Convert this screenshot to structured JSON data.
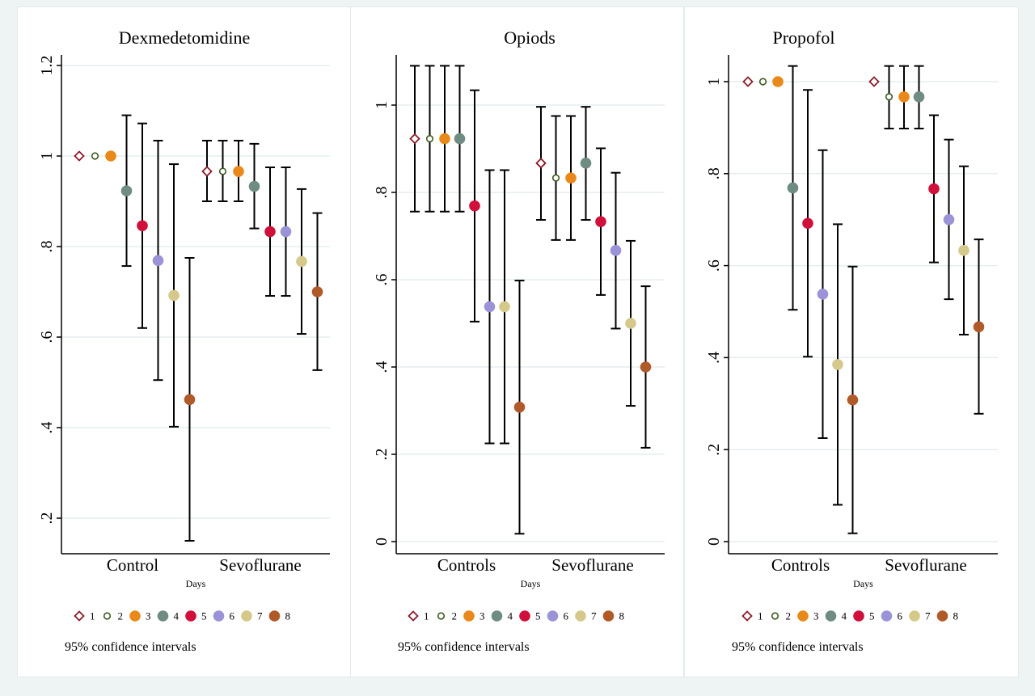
{
  "chart_data": [
    {
      "type": "scatter",
      "title": "Dexmedetomidine",
      "xlabel": "Days",
      "ylabel": "",
      "categories": [
        "Control",
        "Sevoflurane"
      ],
      "ylim": [
        0.12,
        1.22
      ],
      "yticks": [
        0.2,
        0.4,
        0.6,
        0.8,
        1,
        1.2
      ],
      "ytick_labels": [
        ".2",
        ".4",
        ".6",
        ".8",
        "1",
        "1.2"
      ],
      "grid": true,
      "legend_position": "bottom",
      "note": "95% confidence intervals",
      "series": [
        {
          "name": "1",
          "values": [
            1.0,
            0.966
          ],
          "ci_low": [
            null,
            0.9
          ],
          "ci_high": [
            null,
            1.034
          ]
        },
        {
          "name": "2",
          "values": [
            1.0,
            0.966
          ],
          "ci_low": [
            null,
            0.9
          ],
          "ci_high": [
            null,
            1.034
          ]
        },
        {
          "name": "3",
          "values": [
            1.0,
            0.966
          ],
          "ci_low": [
            null,
            0.9
          ],
          "ci_high": [
            null,
            1.034
          ]
        },
        {
          "name": "4",
          "values": [
            0.923,
            0.933
          ],
          "ci_low": [
            0.757,
            0.84
          ],
          "ci_high": [
            1.09,
            1.027
          ]
        },
        {
          "name": "5",
          "values": [
            0.846,
            0.833
          ],
          "ci_low": [
            0.62,
            0.691
          ],
          "ci_high": [
            1.072,
            0.975
          ]
        },
        {
          "name": "6",
          "values": [
            0.769,
            0.833
          ],
          "ci_low": [
            0.505,
            0.691
          ],
          "ci_high": [
            1.034,
            0.975
          ]
        },
        {
          "name": "7",
          "values": [
            0.692,
            0.767
          ],
          "ci_low": [
            0.402,
            0.607
          ],
          "ci_high": [
            0.982,
            0.927
          ]
        },
        {
          "name": "8",
          "values": [
            0.462,
            0.7
          ],
          "ci_low": [
            0.15,
            0.527
          ],
          "ci_high": [
            0.775,
            0.874
          ]
        }
      ]
    },
    {
      "type": "scatter",
      "title": "Opiods",
      "xlabel": "Days",
      "ylabel": "",
      "categories": [
        "Controls",
        "Sevoflurane"
      ],
      "ylim": [
        -0.08,
        1.12
      ],
      "yticks": [
        0,
        0.2,
        0.4,
        0.6,
        0.8,
        1
      ],
      "ytick_labels": [
        "0",
        ".2",
        ".4",
        ".6",
        ".8",
        "1"
      ],
      "grid": true,
      "legend_position": "bottom",
      "note": "95% confidence intervals",
      "series": [
        {
          "name": "1",
          "values": [
            0.923,
            0.867
          ],
          "ci_low": [
            0.756,
            0.737
          ],
          "ci_high": [
            1.09,
            0.996
          ]
        },
        {
          "name": "2",
          "values": [
            0.923,
            0.833
          ],
          "ci_low": [
            0.756,
            0.691
          ],
          "ci_high": [
            1.09,
            0.975
          ]
        },
        {
          "name": "3",
          "values": [
            0.923,
            0.833
          ],
          "ci_low": [
            0.756,
            0.691
          ],
          "ci_high": [
            1.09,
            0.975
          ]
        },
        {
          "name": "4",
          "values": [
            0.923,
            0.867
          ],
          "ci_low": [
            0.756,
            0.737
          ],
          "ci_high": [
            1.09,
            0.996
          ]
        },
        {
          "name": "5",
          "values": [
            0.769,
            0.733
          ],
          "ci_low": [
            0.504,
            0.565
          ],
          "ci_high": [
            1.034,
            0.901
          ]
        },
        {
          "name": "6",
          "values": [
            0.538,
            0.667
          ],
          "ci_low": [
            0.225,
            0.488
          ],
          "ci_high": [
            0.851,
            0.845
          ]
        },
        {
          "name": "7",
          "values": [
            0.538,
            0.5
          ],
          "ci_low": [
            0.225,
            0.311
          ],
          "ci_high": [
            0.851,
            0.689
          ]
        },
        {
          "name": "8",
          "values": [
            0.308,
            0.4
          ],
          "ci_low": [
            0.018,
            0.215
          ],
          "ci_high": [
            0.598,
            0.585
          ]
        }
      ]
    },
    {
      "type": "scatter",
      "title": "Propofol",
      "xlabel": "Days",
      "ylabel": "",
      "categories": [
        "Controls",
        "Sevoflurane"
      ],
      "ylim": [
        -0.08,
        1.06
      ],
      "yticks": [
        0,
        0.2,
        0.4,
        0.6,
        0.8,
        1
      ],
      "ytick_labels": [
        "0",
        ".2",
        ".4",
        ".6",
        ".8",
        "1"
      ],
      "grid": true,
      "legend_position": "bottom",
      "note": "95% confidence intervals",
      "series": [
        {
          "name": "1",
          "values": [
            1.0,
            1.0
          ],
          "ci_low": [
            null,
            null
          ],
          "ci_high": [
            null,
            null
          ]
        },
        {
          "name": "2",
          "values": [
            1.0,
            0.967
          ],
          "ci_low": [
            null,
            0.898
          ],
          "ci_high": [
            null,
            1.034
          ]
        },
        {
          "name": "3",
          "values": [
            1.0,
            0.967
          ],
          "ci_low": [
            null,
            0.898
          ],
          "ci_high": [
            null,
            1.034
          ]
        },
        {
          "name": "4",
          "values": [
            0.769,
            0.967
          ],
          "ci_low": [
            0.504,
            0.898
          ],
          "ci_high": [
            1.034,
            1.034
          ]
        },
        {
          "name": "5",
          "values": [
            0.692,
            0.767
          ],
          "ci_low": [
            0.402,
            0.607
          ],
          "ci_high": [
            0.982,
            0.927
          ]
        },
        {
          "name": "6",
          "values": [
            0.538,
            0.7
          ],
          "ci_low": [
            0.225,
            0.527
          ],
          "ci_high": [
            0.851,
            0.874
          ]
        },
        {
          "name": "7",
          "values": [
            0.385,
            0.633
          ],
          "ci_low": [
            0.08,
            0.45
          ],
          "ci_high": [
            0.69,
            0.816
          ]
        },
        {
          "name": "8",
          "values": [
            0.308,
            0.467
          ],
          "ci_low": [
            0.018,
            0.278
          ],
          "ci_high": [
            0.598,
            0.657
          ]
        }
      ]
    }
  ],
  "legend": {
    "items": [
      {
        "label": "1",
        "marker": "hollow-diamond",
        "color": "#8b1a2a"
      },
      {
        "label": "2",
        "marker": "hollow-circle",
        "color": "#3d5a1e"
      },
      {
        "label": "3",
        "marker": "filled-circle",
        "color": "#e8891a"
      },
      {
        "label": "4",
        "marker": "filled-circle",
        "color": "#6e8c82"
      },
      {
        "label": "5",
        "marker": "filled-circle",
        "color": "#d0103a"
      },
      {
        "label": "6",
        "marker": "filled-circle",
        "color": "#9a93d8"
      },
      {
        "label": "7",
        "marker": "filled-circle",
        "color": "#d4c98a"
      },
      {
        "label": "8",
        "marker": "filled-circle",
        "color": "#b05a2a"
      }
    ]
  },
  "colors": {
    "grid": "#e6eef0",
    "axis": "#000000",
    "ci": "#000000"
  }
}
